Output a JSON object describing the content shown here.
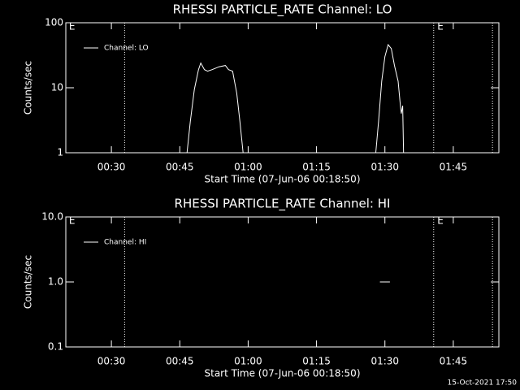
{
  "chart_data": [
    {
      "type": "line",
      "title": "RHESSI PARTICLE_RATE Channel: LO",
      "xlabel": "Start Time (07-Jun-06 00:18:50)",
      "ylabel": "Counts/sec",
      "xlim": [
        20,
        115
      ],
      "xticks": [
        {
          "value": 30,
          "label": "00:30"
        },
        {
          "value": 45,
          "label": "00:45"
        },
        {
          "value": 60,
          "label": "01:00"
        },
        {
          "value": 75,
          "label": "01:15"
        },
        {
          "value": 90,
          "label": "01:30"
        },
        {
          "value": 105,
          "label": "01:45"
        }
      ],
      "ylim": [
        1,
        100
      ],
      "yticks": [
        1,
        10,
        100
      ],
      "ylog": true,
      "legend": "upper left",
      "vlines": [
        32.9,
        100.7,
        113.6
      ],
      "annotations": [
        {
          "text": "E",
          "x": 20.7
        },
        {
          "text": "E",
          "x": 101.5
        }
      ],
      "series": [
        {
          "name": "Channel: LO",
          "color": "#ffffff",
          "x": [
            46.6,
            47.3,
            48.2,
            49.1,
            49.6,
            50.4,
            51.1,
            52.1,
            53.6,
            55.0,
            55.7,
            56.6,
            57.5,
            58.2,
            58.9,
            null,
            88.0,
            88.6,
            89.3,
            90.0,
            90.7,
            91.4,
            92.1,
            92.9,
            93.4,
            93.6,
            93.9,
            94.1
          ],
          "values": [
            1,
            3,
            9.4,
            19,
            24,
            19,
            18,
            19,
            21,
            22,
            19,
            18,
            8.2,
            3,
            1,
            null,
            1,
            3,
            12.6,
            30,
            46,
            40,
            22,
            12.6,
            5.3,
            4,
            5.3,
            1
          ]
        }
      ]
    },
    {
      "type": "line",
      "title": "RHESSI PARTICLE_RATE Channel: HI",
      "xlabel": "Start Time (07-Jun-06 00:18:50)",
      "ylabel": "Counts/sec",
      "xlim": [
        20,
        115
      ],
      "xticks": [
        {
          "value": 30,
          "label": "00:30"
        },
        {
          "value": 45,
          "label": "00:45"
        },
        {
          "value": 60,
          "label": "01:00"
        },
        {
          "value": 75,
          "label": "01:15"
        },
        {
          "value": 90,
          "label": "01:30"
        },
        {
          "value": 105,
          "label": "01:45"
        }
      ],
      "ylim": [
        0.1,
        10
      ],
      "yticks": [
        0.1,
        {
          "value": 1,
          "label": "1.0"
        },
        {
          "value": 10,
          "label": "10.0"
        }
      ],
      "ylog": true,
      "legend": "upper left",
      "vlines": [
        32.9,
        100.7,
        113.6
      ],
      "annotations": [
        {
          "text": "E",
          "x": 20.7
        },
        {
          "text": "E",
          "x": 101.5
        }
      ],
      "series": [
        {
          "name": "Channel: HI",
          "color": "#ffffff",
          "x": [
            88.9,
            91.1
          ],
          "values": [
            1,
            1
          ]
        }
      ]
    }
  ],
  "footer": "15-Oct-2021 17:50"
}
